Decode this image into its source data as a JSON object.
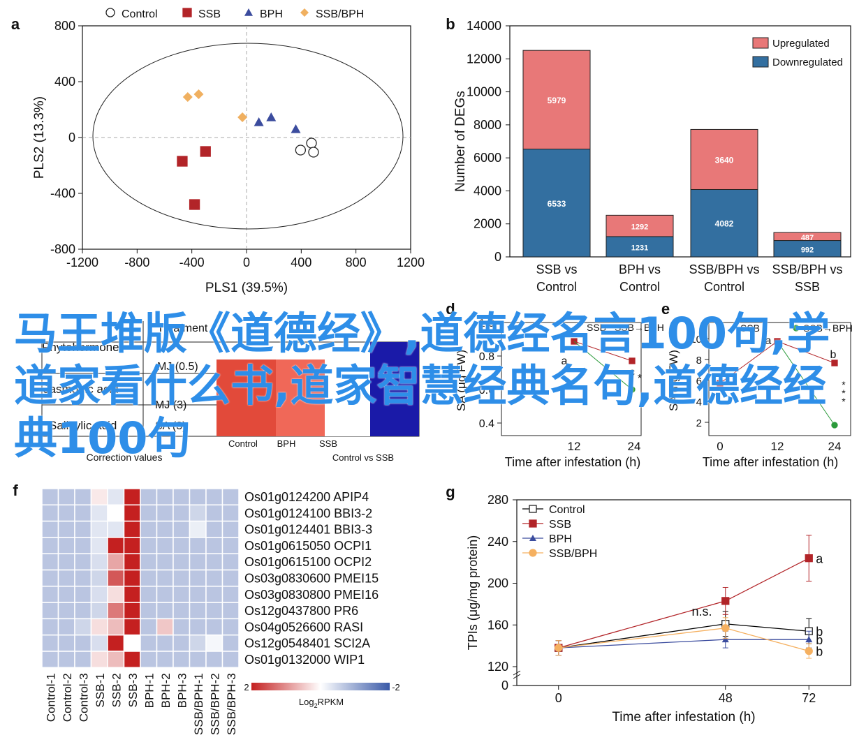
{
  "overlay_text": "马王堆版《道德经》,道德经名言100句,学道家看什么书,道家智慧经典名句,道德经经典100句",
  "chart_data": [
    {
      "panel": "a",
      "type": "scatter",
      "xlabel": "PLS1 (39.5%)",
      "ylabel": "PLS2 (13.3%)",
      "xlim": [
        -1200,
        1200
      ],
      "ylim": [
        -800,
        800
      ],
      "xticks": [
        -1200,
        -800,
        -400,
        0,
        400,
        800,
        1200
      ],
      "yticks": [
        -800,
        -400,
        0,
        400,
        800
      ],
      "legend_position": "top",
      "series": [
        {
          "name": "Control",
          "marker": "circle-open",
          "color": "#000000",
          "points": [
            [
              475,
              -40
            ],
            [
              395,
              -90
            ],
            [
              490,
              -105
            ]
          ]
        },
        {
          "name": "SSB",
          "marker": "square",
          "color": "#b22428",
          "points": [
            [
              -470,
              -170
            ],
            [
              -300,
              -100
            ],
            [
              -380,
              -480
            ]
          ]
        },
        {
          "name": "BPH",
          "marker": "triangle",
          "color": "#3b4c9e",
          "points": [
            [
              90,
              110
            ],
            [
              180,
              145
            ],
            [
              360,
              60
            ]
          ]
        },
        {
          "name": "SSB/BPH",
          "marker": "diamond",
          "color": "#f0b060",
          "points": [
            [
              -430,
              290
            ],
            [
              -350,
              310
            ],
            [
              -30,
              145
            ]
          ]
        }
      ]
    },
    {
      "panel": "b",
      "type": "bar",
      "stacked": true,
      "ylabel": "Number of DEGs",
      "ylim": [
        0,
        14000
      ],
      "yticks": [
        0,
        2000,
        4000,
        6000,
        8000,
        10000,
        12000,
        14000
      ],
      "categories": [
        [
          "SSB vs",
          "Control"
        ],
        [
          "BPH vs",
          "Control"
        ],
        [
          "SSB/BPH vs",
          "Control"
        ],
        [
          "SSB/BPH vs",
          "SSB"
        ]
      ],
      "series": [
        {
          "name": "Downregulated",
          "color": "#336fa0",
          "values": [
            6533,
            1231,
            4082,
            992
          ]
        },
        {
          "name": "Upregulated",
          "color": "#e87878",
          "values": [
            5979,
            1292,
            3640,
            487
          ]
        }
      ],
      "legend_position": "top-right"
    },
    {
      "panel": "f",
      "type": "heatmap",
      "columns": [
        "Control-1",
        "Control-2",
        "Control-3",
        "SSB-1",
        "SSB-2",
        "SSB-3",
        "BPH-1",
        "BPH-2",
        "BPH-3",
        "SSB/BPH-1",
        "SSB/BPH-2",
        "SSB/BPH-3"
      ],
      "rows": [
        "Os01g0124200 APIP4",
        "Os01g0124100 BBI3-2",
        "Os01g0124401 BBI3-3",
        "Os01g0615050 OCPI1",
        "Os01g0615100 OCPI2",
        "Os03g0830600 PMEI15",
        "Os03g0830800 PMEI16",
        "Os12g0437800 PR6",
        "Os04g0526600 RASI",
        "Os12g0548401 SCI2A",
        "Os01g0132000 WIP1"
      ],
      "values": [
        [
          -0.7,
          -0.7,
          -0.7,
          0.2,
          -0.3,
          2,
          -0.7,
          -0.7,
          -0.7,
          -0.7,
          -0.7,
          -0.7
        ],
        [
          -0.7,
          -0.7,
          -0.7,
          -0.3,
          0,
          2,
          -0.7,
          -0.7,
          -0.7,
          -0.5,
          -0.7,
          -0.7
        ],
        [
          -0.7,
          -0.7,
          -0.7,
          -0.3,
          -0.3,
          2,
          -0.7,
          -0.7,
          -0.7,
          -0.2,
          -0.7,
          -0.7
        ],
        [
          -0.7,
          -0.7,
          -0.7,
          -0.3,
          2,
          2,
          -0.7,
          -0.7,
          -0.7,
          -0.7,
          -0.7,
          -0.7
        ],
        [
          -0.7,
          -0.7,
          -0.7,
          -0.4,
          0.8,
          2,
          -0.7,
          -0.7,
          -0.7,
          -0.7,
          -0.7,
          -0.7
        ],
        [
          -0.7,
          -0.7,
          -0.7,
          -0.5,
          1.5,
          2,
          -0.7,
          -0.7,
          -0.7,
          -0.7,
          -0.7,
          -0.7
        ],
        [
          -0.7,
          -0.7,
          -0.7,
          -0.4,
          0.3,
          2,
          -0.7,
          -0.7,
          -0.7,
          -0.7,
          -0.7,
          -0.7
        ],
        [
          -0.7,
          -0.7,
          -0.7,
          -0.5,
          1.2,
          2,
          -0.7,
          -0.7,
          -0.7,
          -0.7,
          -0.7,
          -0.7
        ],
        [
          -0.7,
          -0.7,
          -0.5,
          0.3,
          0.6,
          2,
          -0.7,
          0.5,
          -0.7,
          -0.7,
          -0.7,
          -0.7
        ],
        [
          -0.7,
          -0.7,
          -0.7,
          -0.4,
          2,
          0,
          -0.7,
          -0.7,
          -0.7,
          -0.5,
          -0.1,
          -0.7
        ],
        [
          -0.7,
          -0.7,
          -0.7,
          0.3,
          0.6,
          2,
          -0.7,
          -0.7,
          -0.7,
          -0.7,
          -0.7,
          -0.7
        ]
      ],
      "scale": {
        "min": -2,
        "max": 2,
        "min_label": "-2",
        "max_label": "2",
        "title_main": "Log",
        "title_sub": "2",
        "title_end": "RPKM",
        "low_color": "#3a5aa8",
        "high_color": "#c42020"
      }
    },
    {
      "panel": "g",
      "type": "line",
      "xlabel": "Time after infestation (h)",
      "ylabel": "TPIs (μg/mg protein)",
      "x": [
        0,
        48,
        72
      ],
      "xlim": [
        -12,
        84
      ],
      "ylim": [
        120,
        280
      ],
      "yticks": [
        120,
        160,
        200,
        240,
        280
      ],
      "extra_ytick": 0,
      "legend_position": "top-left",
      "series": [
        {
          "name": "Control",
          "marker": "square-open",
          "color": "#000000",
          "values": [
            138,
            161,
            154
          ],
          "err": [
            7,
            12,
            12
          ],
          "letter": "b"
        },
        {
          "name": "SSB",
          "marker": "square",
          "color": "#b22428",
          "values": [
            138,
            183,
            224
          ],
          "err": [
            7,
            13,
            22
          ],
          "letter": "a"
        },
        {
          "name": "BPH",
          "marker": "triangle",
          "color": "#3b4c9e",
          "values": [
            138,
            146,
            146
          ],
          "err": [
            7,
            8,
            8
          ],
          "letter": "b"
        },
        {
          "name": "SSB/BPH",
          "marker": "circle",
          "color": "#f5b060",
          "values": [
            138,
            157,
            135
          ],
          "err": [
            7,
            10,
            7
          ],
          "letter": "b"
        }
      ],
      "annotation": "n.s."
    }
  ],
  "panel_labels": [
    "a",
    "b",
    "f",
    "g"
  ],
  "partial_panels": {
    "c": {
      "y_labels": [
        "Phytohormone",
        "Jasmonic acid",
        "Salicylic acid"
      ],
      "top_labels": [
        "Treatment",
        "MJ (0.5)",
        "MJ (3)",
        "SA (3)"
      ],
      "xlabel": "Correction values",
      "x_labels": [
        "Control",
        "BPH",
        "SSB",
        "Control vs SSB"
      ]
    },
    "d": {
      "label": "d",
      "legend": [
        "SSB",
        "SSB→BPH"
      ],
      "ylabel_fragment": "SA (μg FW)",
      "yticks": [
        "0.4",
        "0.6",
        "0.8",
        "1.0"
      ],
      "xticks": [
        "12",
        "24"
      ],
      "xlabel": "Time after infestation (h)",
      "letters": [
        "a",
        "c"
      ],
      "stars": "*"
    },
    "e": {
      "label": "e",
      "legend": [
        "SSB",
        "SSB→BPH"
      ],
      "ylabel_fragment": "SA (ng FW)",
      "yticks": [
        "2",
        "4",
        "6",
        "8",
        "10"
      ],
      "xticks": [
        "0",
        "12",
        "24"
      ],
      "xlabel": "Time after infestation (h)",
      "letters": [
        "a",
        "b"
      ],
      "stars": [
        "*",
        "*",
        "*"
      ]
    }
  }
}
